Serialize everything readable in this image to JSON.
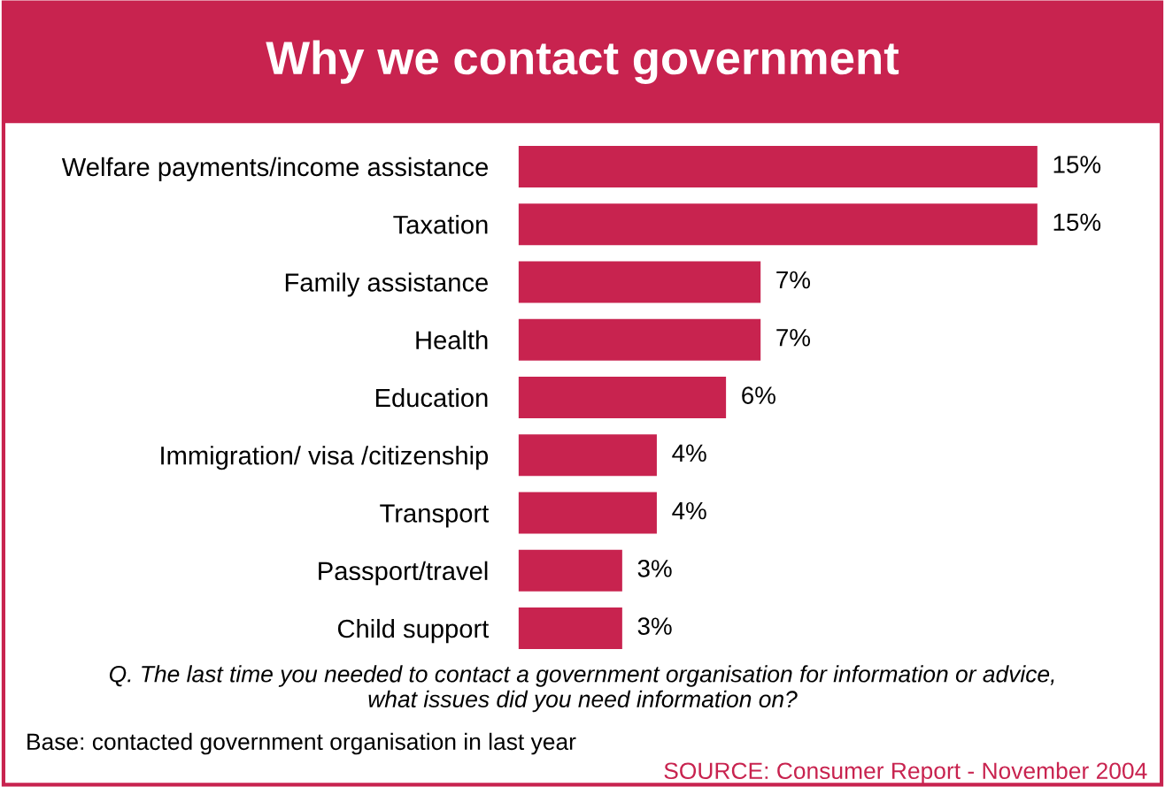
{
  "chart_data": {
    "type": "bar",
    "orientation": "horizontal",
    "title": "Why we contact government",
    "categories": [
      "Welfare payments/income assistance",
      "Taxation",
      "Family assistance",
      "Health",
      "Education",
      "Immigration/ visa /citizenship",
      "Transport",
      "Passport/travel",
      "Child support"
    ],
    "values": [
      15,
      15,
      7,
      7,
      6,
      4,
      4,
      3,
      3
    ],
    "data_labels": true,
    "value_labels": [
      "15%",
      "15%",
      "7%",
      "7%",
      "6%",
      "4%",
      "4%",
      "3%",
      "3%"
    ],
    "color": "#c8234f",
    "grid": false,
    "legend": false,
    "tick_labels": "y",
    "annotations": [
      "Q. The last time you needed to contact a government organisation for information or advice, what issues did you need information on?",
      "Base: contacted government organisation in last year",
      "SOURCE: Consumer Report - November 2004"
    ]
  }
}
